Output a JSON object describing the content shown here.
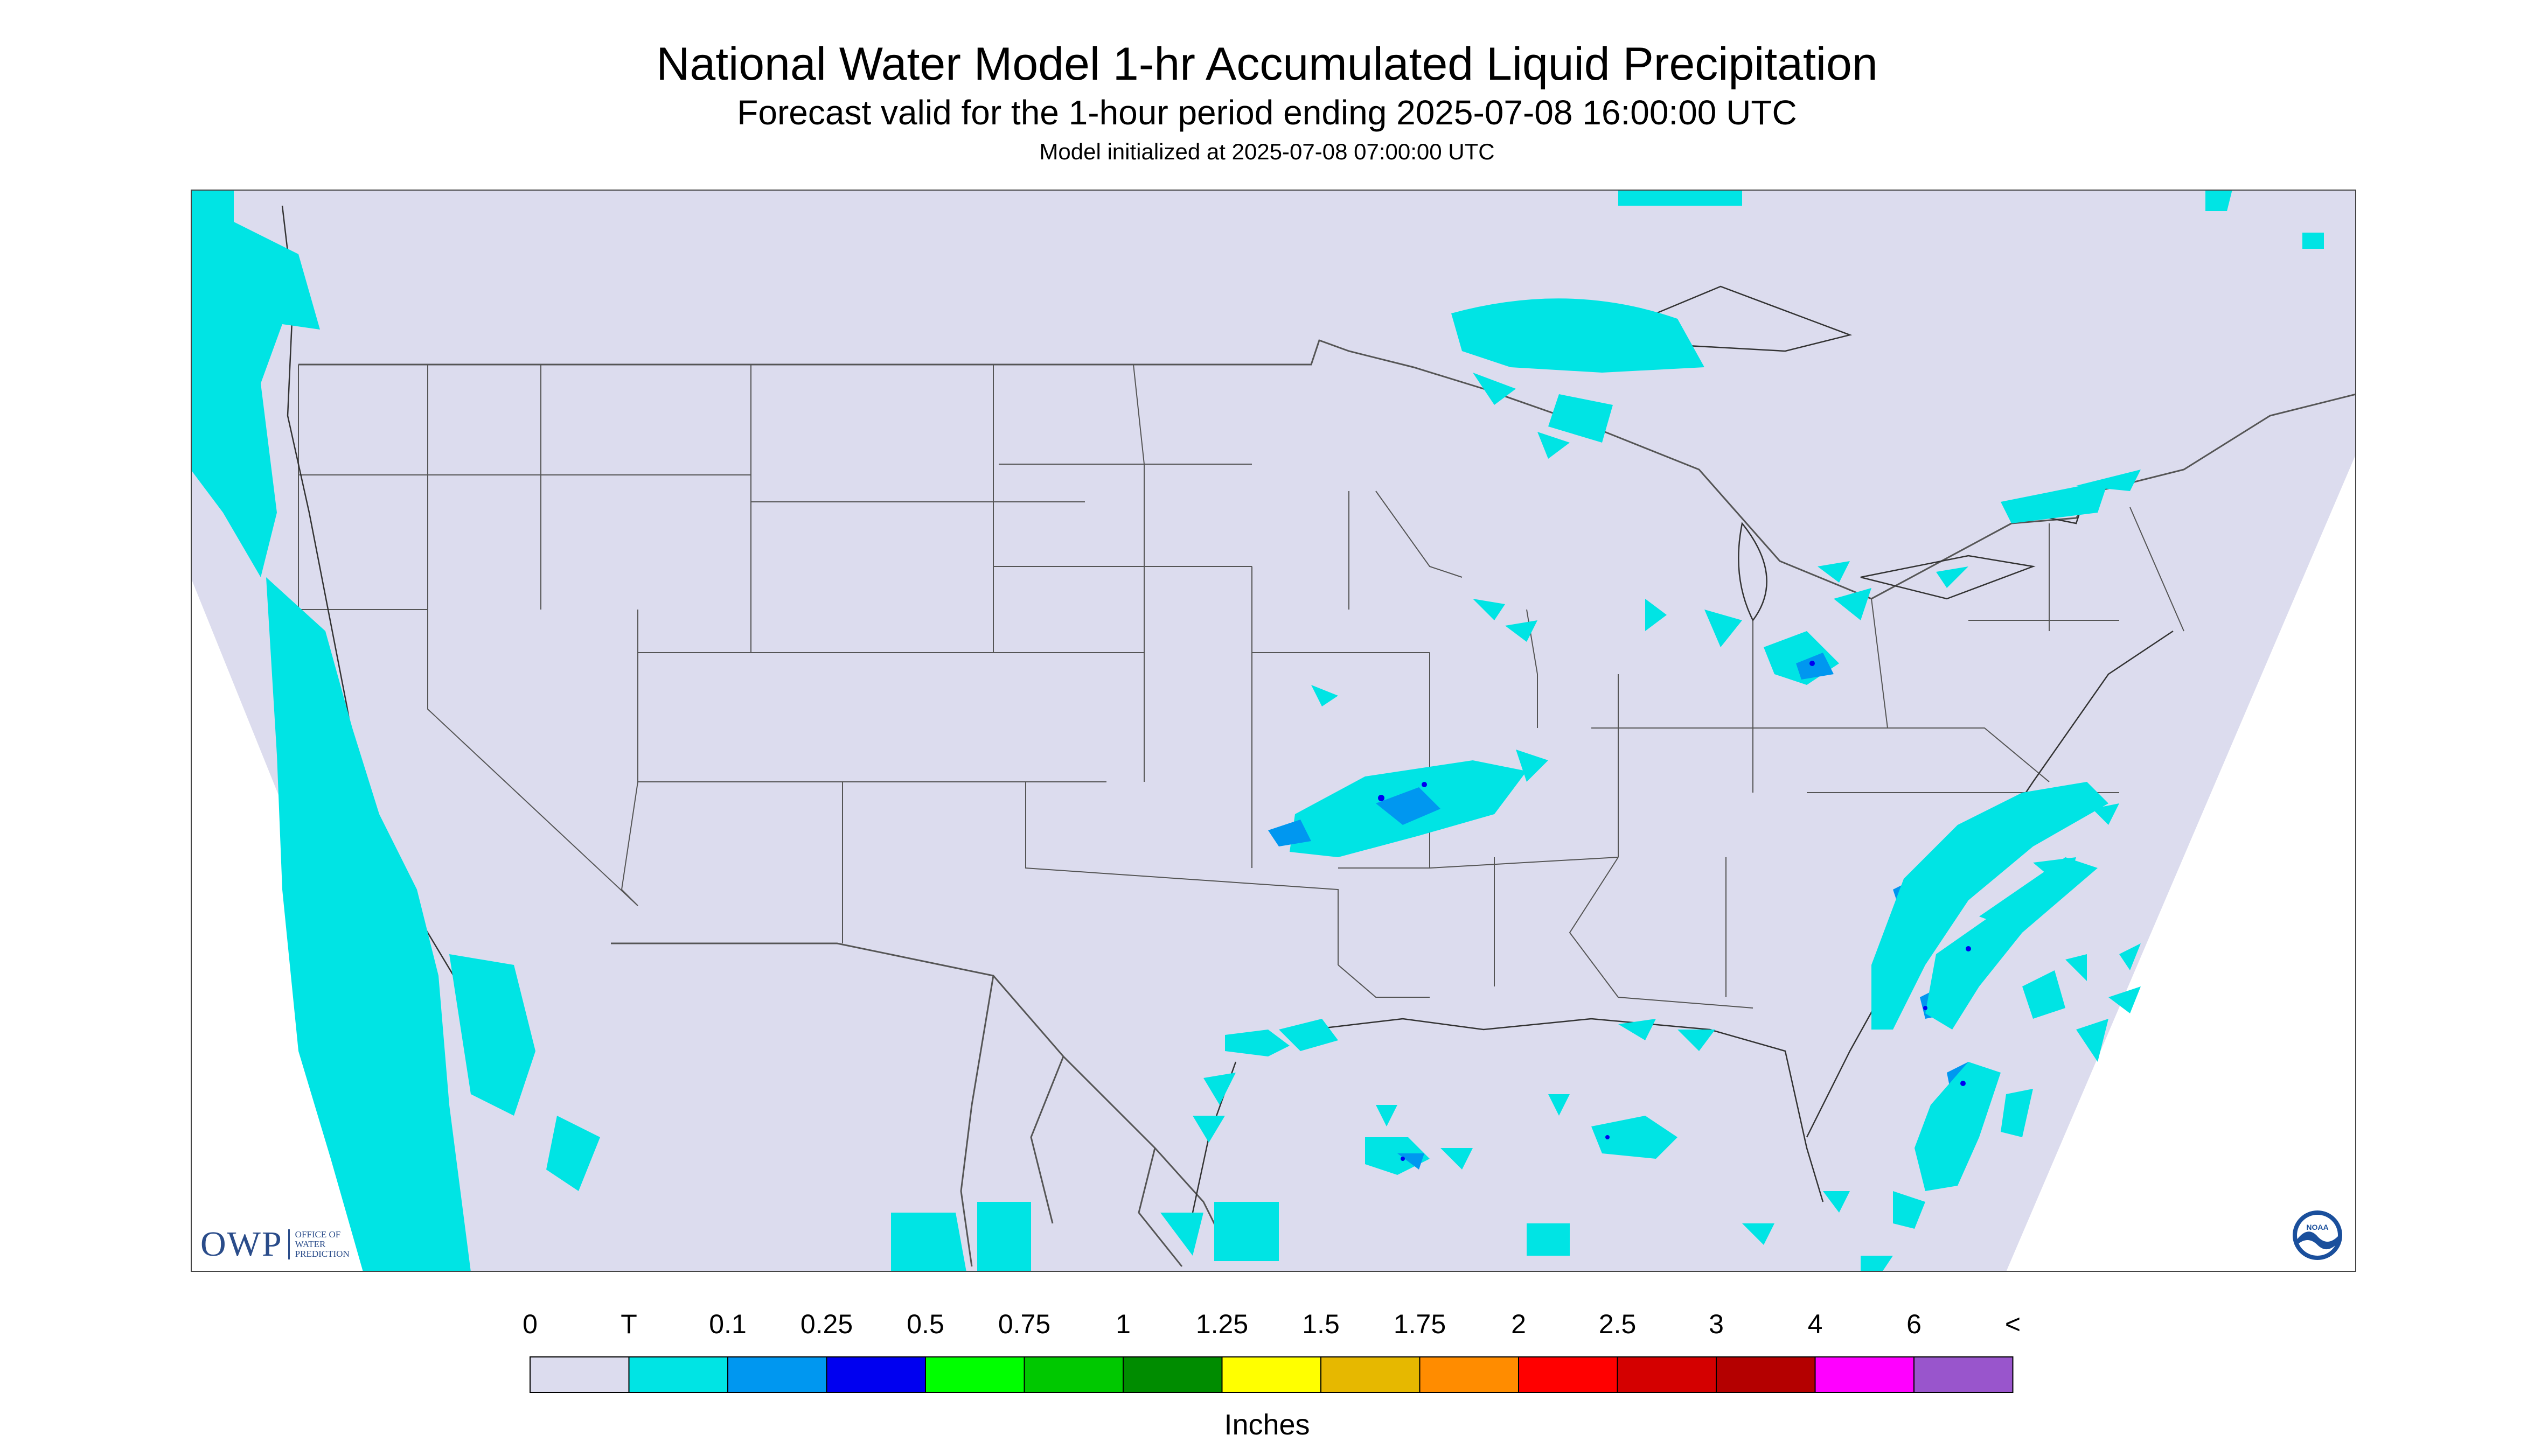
{
  "header": {
    "title": "National Water Model 1-hr Accumulated Liquid Precipitation",
    "subtitle": "Forecast valid for the 1-hour period ending 2025-07-08 16:00:00 UTC",
    "init": "Model initialized at 2025-07-08 07:00:00 UTC"
  },
  "map": {
    "background_color": "#dcdcee",
    "outside_domain_color": "#ffffff",
    "boundary_color": "#555555",
    "precip_regions": [
      {
        "area": "Pacific Northwest coast and offshore",
        "category": "T"
      },
      {
        "area": "Lake Superior / northern Ontario",
        "category": "T"
      },
      {
        "area": "Northern Michigan",
        "category": "T"
      },
      {
        "area": "Illinois / Indiana",
        "category": "T"
      },
      {
        "area": "Ohio / Pennsylvania / New York",
        "category": "0.1"
      },
      {
        "area": "Missouri / Arkansas",
        "category": "0.1"
      },
      {
        "area": "Texas Gulf coast",
        "category": "T"
      },
      {
        "area": "Gulf of Mexico",
        "category": "0.1"
      },
      {
        "area": "Atlantic off the Carolinas",
        "category": "0.1"
      },
      {
        "area": "Atlantic east of Florida",
        "category": "0.1"
      },
      {
        "area": "Northern Mexico / Gulf of California",
        "category": "T"
      }
    ]
  },
  "logos": {
    "owp_letters": "OWP",
    "owp_words": [
      "OFFICE OF",
      "WATER",
      "PREDICTION"
    ],
    "noaa_text": "NOAA"
  },
  "legend": {
    "labels": [
      "0",
      "T",
      "0.1",
      "0.25",
      "0.5",
      "0.75",
      "1",
      "1.25",
      "1.5",
      "1.75",
      "2",
      "2.5",
      "3",
      "4",
      "6",
      "<"
    ],
    "colors": [
      "#dcdcee",
      "#00e4e4",
      "#0097f0",
      "#0000f0",
      "#00ff00",
      "#00c800",
      "#008c00",
      "#ffff00",
      "#e6b800",
      "#ff8c00",
      "#ff0000",
      "#d40000",
      "#b40000",
      "#ff00ff",
      "#9955cc"
    ],
    "units": "Inches"
  }
}
